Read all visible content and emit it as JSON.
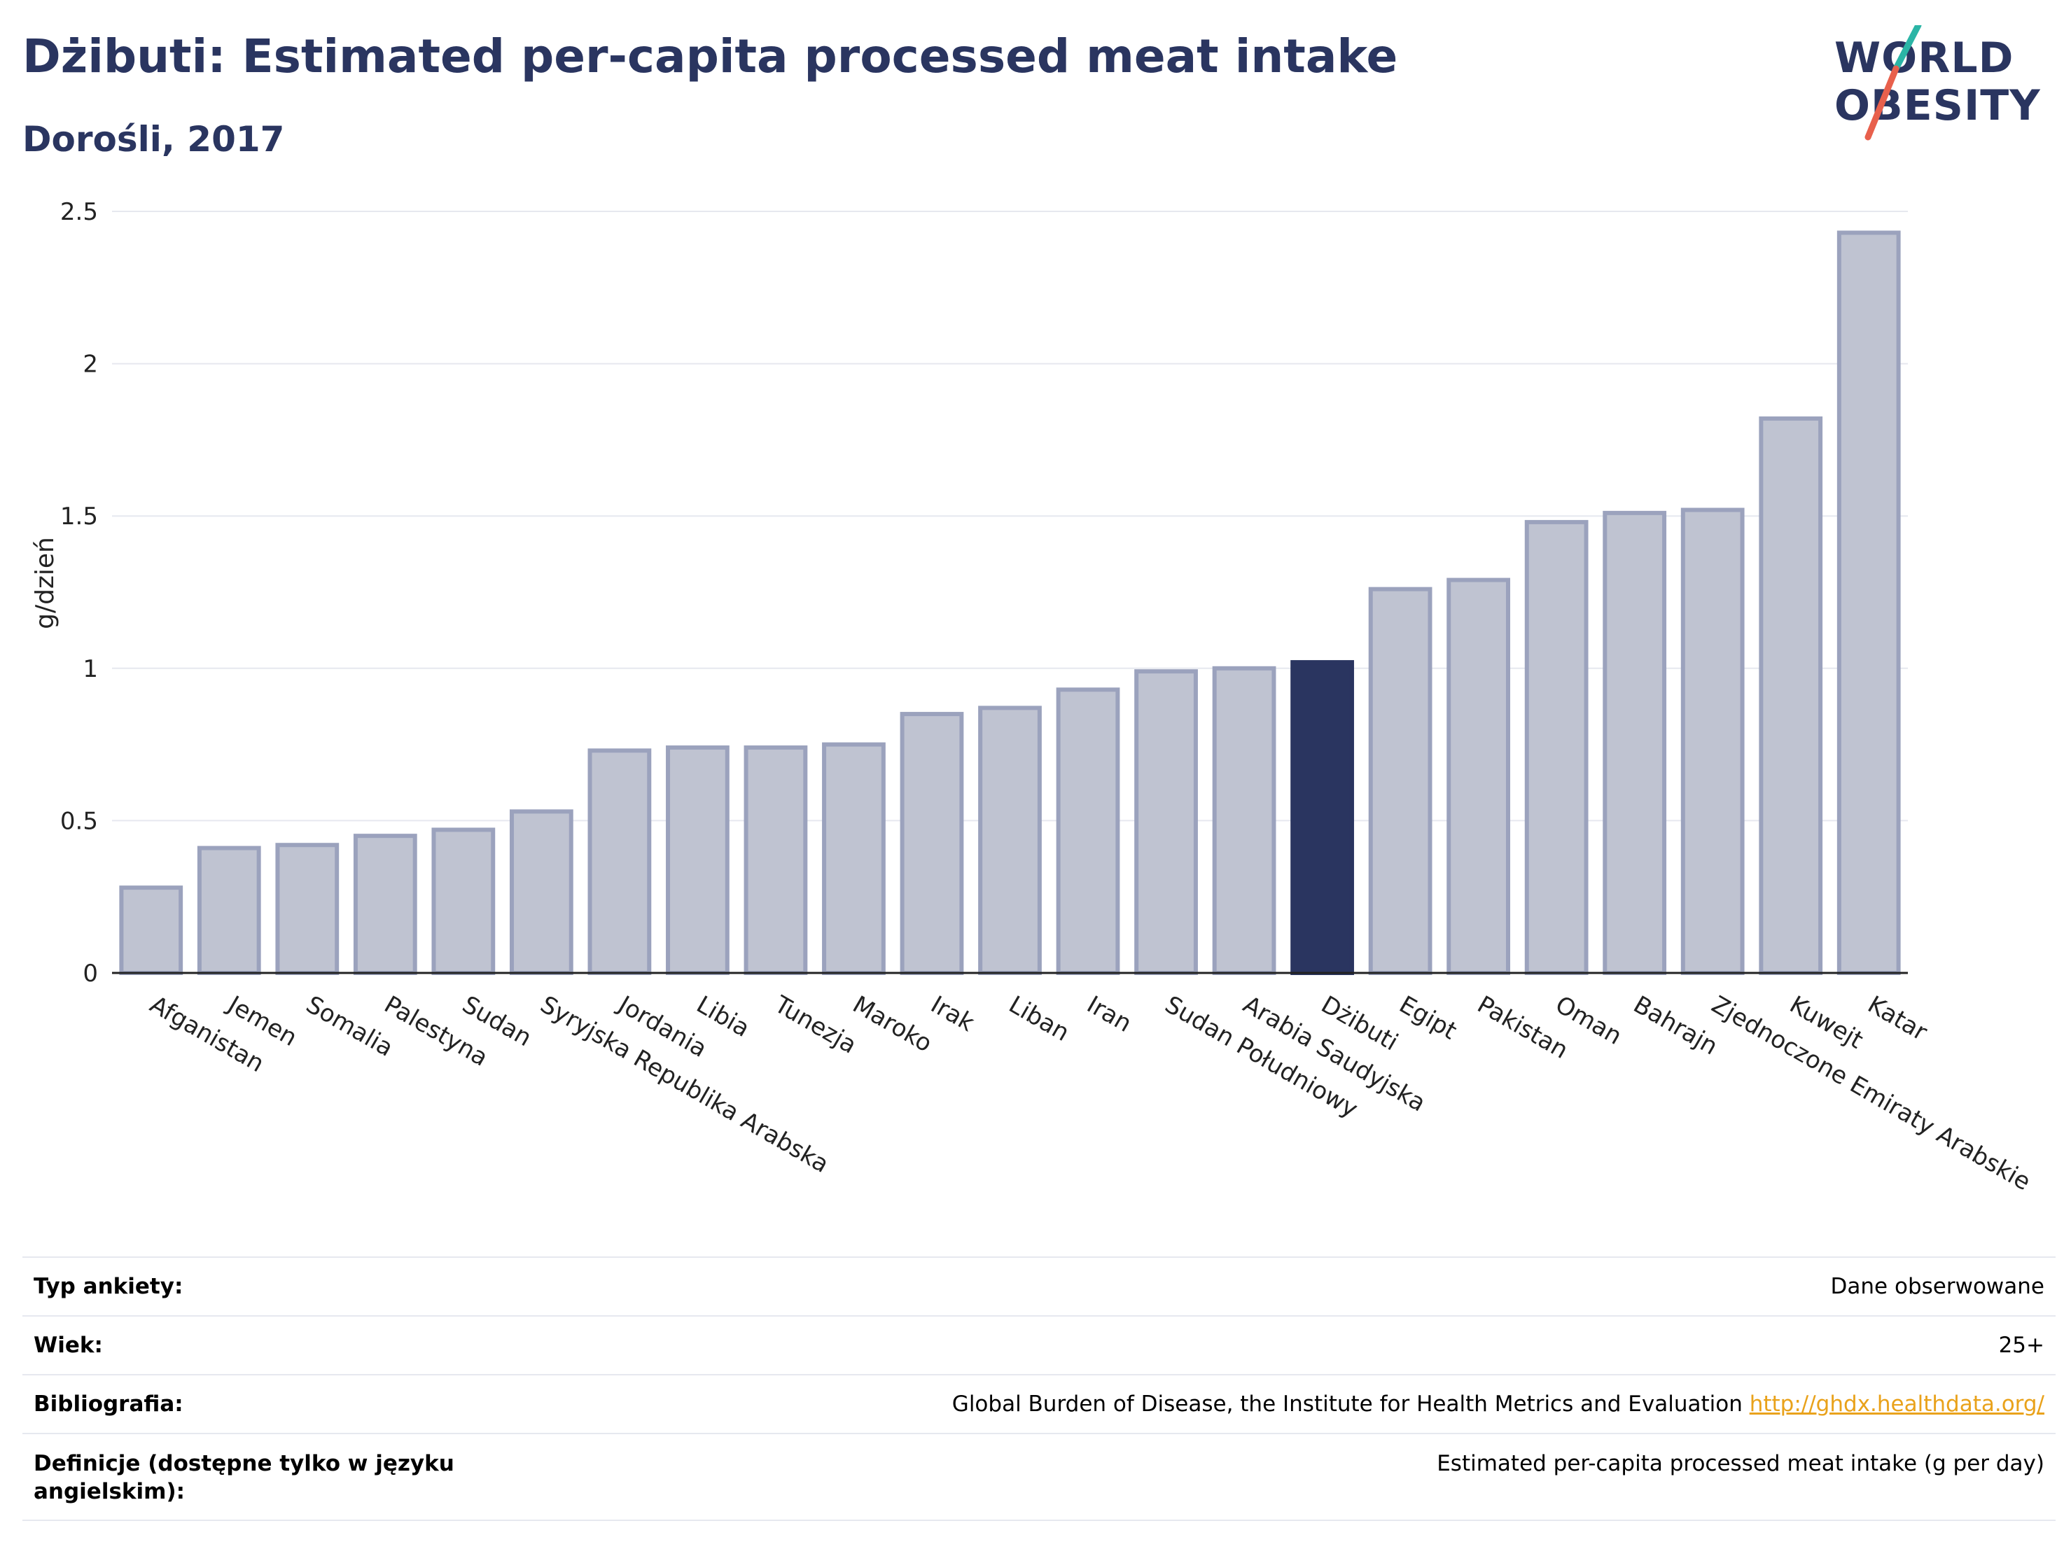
{
  "title": "Dżibuti: Estimated per-capita processed meat intake",
  "subtitle": "Dorośli, 2017",
  "logo": {
    "line1": "WORLD",
    "line2": "OBESITY",
    "accent_teal": "#2bb5a6",
    "accent_red": "#e8604c"
  },
  "colors": {
    "bar_fill": "#bfc3d1",
    "bar_stroke": "#9ba2bd",
    "highlight": "#2a3560",
    "grid": "#e6e8ef",
    "axis": "#222222"
  },
  "chart_data": {
    "type": "bar",
    "title": "Dżibuti: Estimated per-capita processed meat intake",
    "subtitle": "Dorośli, 2017",
    "ylabel": "g/dzień",
    "xlabel": "",
    "ylim": [
      0,
      2.5
    ],
    "yticks": [
      0,
      0.5,
      1,
      1.5,
      2,
      2.5
    ],
    "ytick_labels": [
      "0",
      "0.5",
      "1",
      "1.5",
      "2",
      "2.5"
    ],
    "grid": true,
    "highlight": "Dżibuti",
    "categories": [
      "Afganistan",
      "Jemen",
      "Somalia",
      "Palestyna",
      "Sudan",
      "Syryjska Republika Arabska",
      "Jordania",
      "Libia",
      "Tunezja",
      "Maroko",
      "Irak",
      "Liban",
      "Iran",
      "Sudan Południowy",
      "Arabia Saudyjska",
      "Dżibuti",
      "Egipt",
      "Pakistan",
      "Oman",
      "Bahrajn",
      "Zjednoczone Emiraty Arabskie",
      "Kuwejt",
      "Katar"
    ],
    "values": [
      0.28,
      0.41,
      0.42,
      0.45,
      0.47,
      0.53,
      0.73,
      0.74,
      0.74,
      0.75,
      0.85,
      0.87,
      0.93,
      0.99,
      1.0,
      1.02,
      1.26,
      1.29,
      1.48,
      1.51,
      1.52,
      1.82,
      2.43
    ]
  },
  "meta": [
    {
      "key": "Typ ankiety:",
      "value": "Dane obserwowane"
    },
    {
      "key": "Wiek:",
      "value": "25+"
    },
    {
      "key": "Bibliografia:",
      "value": "Global Burden of Disease, the Institute for Health Metrics and Evaluation",
      "link": "http://ghdx.healthdata.org/"
    },
    {
      "key": "Definicje (dostępne tylko w języku angielskim):",
      "value": "Estimated per-capita processed meat intake (g per day)"
    }
  ]
}
